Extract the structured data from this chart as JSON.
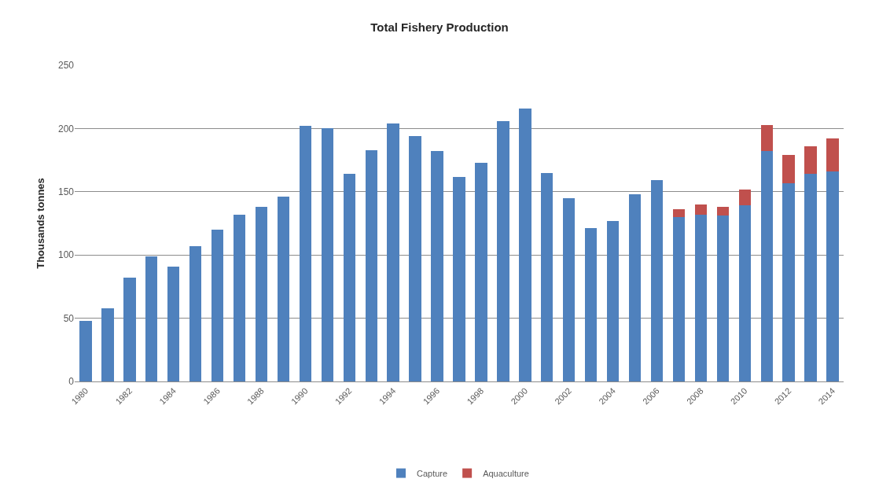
{
  "chart_data": {
    "type": "bar",
    "title": "Total Fishery Production",
    "ylabel": "Thousands tonnes",
    "categories": [
      "1980",
      null,
      "1982",
      null,
      "1984",
      null,
      "1986",
      null,
      "1988",
      null,
      "1990",
      null,
      "1992",
      null,
      "1994",
      null,
      "1996",
      null,
      "1998",
      null,
      "2000",
      null,
      "2002",
      null,
      "2004",
      null,
      "2006",
      null,
      "2008",
      null,
      "2010",
      null,
      "2012",
      null,
      "2014"
    ],
    "series": [
      {
        "name": "Capture",
        "color": "#4f81bd",
        "values": [
          48,
          58,
          82,
          99,
          91,
          107,
          120,
          132,
          138,
          146,
          202,
          200,
          164,
          183,
          204,
          194,
          182,
          162,
          173,
          206,
          216,
          165,
          145,
          121,
          127,
          148,
          159,
          130,
          132,
          131,
          139,
          182,
          157,
          164,
          166
        ]
      },
      {
        "name": "Aquaculture",
        "color": "#c0504d",
        "values": [
          null,
          null,
          null,
          null,
          null,
          null,
          null,
          null,
          null,
          null,
          null,
          null,
          null,
          null,
          null,
          null,
          null,
          null,
          null,
          null,
          null,
          null,
          null,
          null,
          null,
          null,
          null,
          6,
          8,
          7,
          13,
          21,
          22,
          22,
          26
        ]
      }
    ],
    "stacked": true,
    "ylim": [
      0,
      250
    ],
    "yticks": [
      0,
      50,
      100,
      150,
      200,
      250
    ],
    "grid": "y",
    "legend": "bottom"
  }
}
